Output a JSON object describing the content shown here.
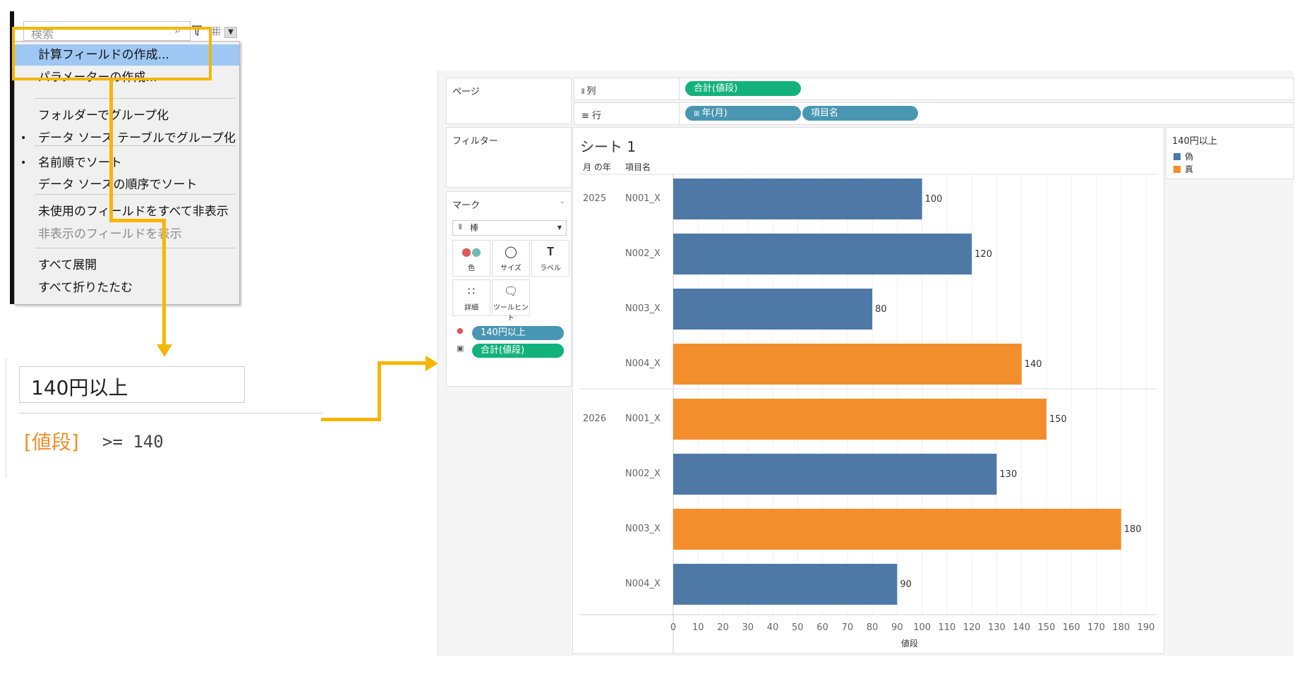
{
  "menu": {
    "search_placeholder": "検索",
    "items": [
      {
        "label": "計算フィールドの作成...",
        "bullet": "",
        "highlighted": true
      },
      {
        "label": "パラメーターの作成...",
        "bullet": ""
      },
      {
        "label": "フォルダーでグループ化",
        "bullet": ""
      },
      {
        "label": "データ ソース テーブルでグループ化",
        "bullet": "•"
      },
      {
        "label": "名前順でソート",
        "bullet": "•"
      },
      {
        "label": "データ ソースの順序でソート",
        "bullet": ""
      },
      {
        "label": "未使用のフィールドをすべて非表示",
        "bullet": ""
      },
      {
        "label": "非表示のフィールドを表示",
        "bullet": "",
        "disabled": true
      },
      {
        "label": "すべて展開",
        "bullet": ""
      },
      {
        "label": "すべて折りたたむ",
        "bullet": ""
      }
    ]
  },
  "calc": {
    "name": "140円以上",
    "field_ref": "[値段]",
    "expression": ">= 140"
  },
  "tableau": {
    "pages_label": "ページ",
    "columns_label": "列",
    "rows_label": "行",
    "column_pill": "合計(値段)",
    "row_pills": [
      "年(月)",
      "項目名"
    ],
    "filters_label": "フィルター",
    "marks_label": "マーク",
    "mark_type": "棒",
    "mark_buttons": [
      "色",
      "サイズ",
      "ラベル",
      "詳細",
      "ツールヒント"
    ],
    "mark_pills": [
      "140円以上",
      "合計(値段)"
    ],
    "legend_title": "140円以上",
    "legend": [
      {
        "label": "偽",
        "color": "#4e79a7"
      },
      {
        "label": "真",
        "color": "#f28e2b"
      }
    ]
  },
  "chart_data": {
    "type": "bar",
    "orientation": "horizontal",
    "title": "シート 1",
    "header_col1": "月 の年",
    "header_col2": "項目名",
    "xlabel": "値段",
    "xlim": [
      0,
      195
    ],
    "ticks": [
      0,
      10,
      20,
      30,
      40,
      50,
      60,
      70,
      80,
      90,
      100,
      110,
      120,
      130,
      140,
      150,
      160,
      170,
      180,
      190
    ],
    "groups": [
      {
        "year": "2025",
        "rows": [
          {
            "item": "N001_X",
            "value": 100,
            "flag": "偽"
          },
          {
            "item": "N002_X",
            "value": 120,
            "flag": "偽"
          },
          {
            "item": "N003_X",
            "value": 80,
            "flag": "偽"
          },
          {
            "item": "N004_X",
            "value": 140,
            "flag": "真"
          }
        ]
      },
      {
        "year": "2026",
        "rows": [
          {
            "item": "N001_X",
            "value": 150,
            "flag": "真"
          },
          {
            "item": "N002_X",
            "value": 130,
            "flag": "偽"
          },
          {
            "item": "N003_X",
            "value": 180,
            "flag": "真"
          },
          {
            "item": "N004_X",
            "value": 90,
            "flag": "偽"
          }
        ]
      }
    ],
    "colors": {
      "偽": "#4e79a7",
      "真": "#f28e2b"
    }
  }
}
